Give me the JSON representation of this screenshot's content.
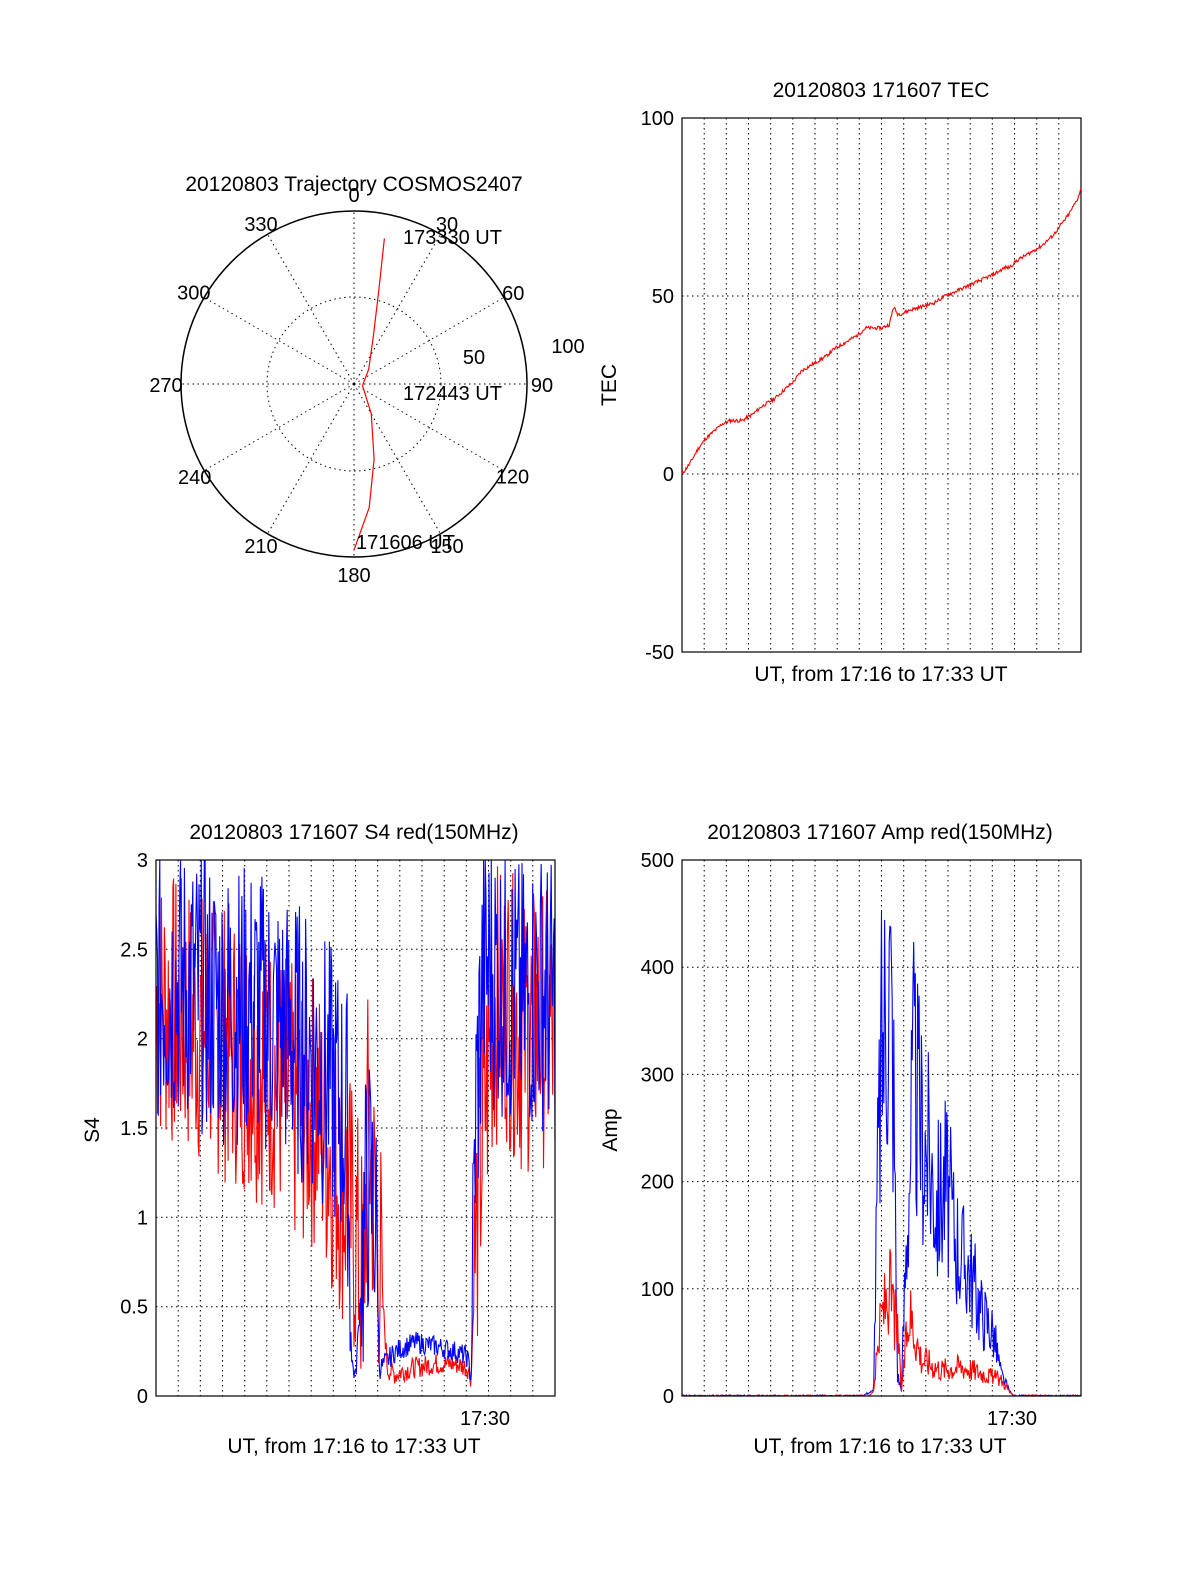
{
  "colors": {
    "red": "#ff0000",
    "blue": "#0000ff"
  },
  "chart_data": [
    {
      "type": "polar",
      "title": "20120803 Trajectory COSMOS2407",
      "azimuth_labels": [
        "0",
        "30",
        "60",
        "90",
        "120",
        "150",
        "180",
        "210",
        "240",
        "270",
        "300",
        "330"
      ],
      "radial_labels": [
        "50",
        "100"
      ],
      "rlim": [
        0,
        100
      ],
      "point_labels": [
        {
          "text": "173330 UT",
          "az": 12,
          "r": 87
        },
        {
          "text": "172443 UT",
          "az": 90,
          "r": 1
        },
        {
          "text": "171606 UT",
          "az": 180,
          "r": 98
        }
      ],
      "trajectory": [
        {
          "az": 11.8,
          "r": 86
        },
        {
          "az": 15,
          "r": 55
        },
        {
          "az": 22,
          "r": 30
        },
        {
          "az": 45,
          "r": 12
        },
        {
          "az": 100,
          "r": 5
        },
        {
          "az": 150,
          "r": 20
        },
        {
          "az": 165,
          "r": 45
        },
        {
          "az": 173,
          "r": 72
        },
        {
          "az": 180,
          "r": 96
        }
      ],
      "grid": true
    },
    {
      "type": "line",
      "title": "20120803 171607 TEC",
      "xlabel": "UT, from 17:16 to 17:33 UT",
      "ylabel": "TEC",
      "ylim": [
        -50,
        100
      ],
      "yticks": [
        "100",
        "50",
        "0",
        "-50"
      ],
      "xlim": [
        0,
        1
      ],
      "grid": true,
      "series": [
        {
          "color": "red",
          "x": [
            0,
            0.02,
            0.04,
            0.06,
            0.08,
            0.1,
            0.12,
            0.15,
            0.18,
            0.2,
            0.23,
            0.26,
            0.28,
            0.3,
            0.33,
            0.36,
            0.38,
            0.41,
            0.44,
            0.46,
            0.48,
            0.5,
            0.52,
            0.53,
            0.54,
            0.55,
            0.57,
            0.6,
            0.63,
            0.66,
            0.7,
            0.74,
            0.78,
            0.81,
            0.82,
            0.84,
            0.87,
            0.9,
            0.93,
            0.95,
            0.97,
            0.99,
            1
          ],
          "y": [
            0,
            3,
            7,
            10,
            12,
            14,
            15,
            15,
            17,
            19,
            21,
            24,
            26,
            29,
            31,
            33,
            35,
            37,
            39,
            41,
            41,
            41,
            42,
            47,
            45,
            45,
            46,
            47,
            48,
            50,
            52,
            54,
            56,
            58,
            58,
            60,
            62,
            64,
            67,
            70,
            73,
            77,
            80
          ]
        }
      ]
    },
    {
      "type": "line",
      "title": "20120803 171607 S4 red(150MHz)",
      "xlabel": "UT, from 17:16 to 17:33 UT",
      "ylabel": "S4",
      "ylim": [
        0,
        3
      ],
      "yticks": [
        "3",
        "2.5",
        "2",
        "1.5",
        "1",
        "0.5",
        "0"
      ],
      "xticks": [
        "17:30"
      ],
      "xlim": [
        0,
        1
      ],
      "grid": true,
      "series": [
        {
          "color": "red",
          "x": [
            0,
            0.08,
            0.16,
            0.24,
            0.3,
            0.35,
            0.4,
            0.45,
            0.48,
            0.5,
            0.52,
            0.53,
            0.55,
            0.56,
            0.58,
            0.6,
            0.62,
            0.65,
            0.7,
            0.75,
            0.78,
            0.79,
            0.8,
            0.82,
            0.84,
            0.85,
            0.88,
            0.92,
            0.96,
            1
          ],
          "y": [
            2.2,
            2.1,
            2.0,
            1.9,
            1.8,
            1.6,
            1.6,
            1.3,
            1.1,
            0.9,
            0.6,
            1.5,
            1.0,
            0.8,
            0.15,
            0.12,
            0.14,
            0.16,
            0.18,
            0.18,
            0.16,
            0.1,
            0.8,
            1.5,
            2.0,
            2.2,
            2.2,
            2.0,
            2.1,
            2.0
          ]
        },
        {
          "color": "blue",
          "x": [
            0,
            0.08,
            0.16,
            0.24,
            0.3,
            0.35,
            0.4,
            0.45,
            0.48,
            0.49,
            0.5,
            0.53,
            0.55,
            0.56,
            0.58,
            0.6,
            0.65,
            0.7,
            0.75,
            0.78,
            0.79,
            0.8,
            0.82,
            0.84,
            0.88,
            0.92,
            0.96,
            1
          ],
          "y": [
            2.3,
            2.3,
            2.2,
            2.2,
            2.1,
            2.0,
            1.9,
            1.7,
            1.5,
            0.2,
            0.1,
            1.2,
            1.0,
            0.15,
            0.2,
            0.25,
            0.3,
            0.28,
            0.25,
            0.22,
            0.1,
            1.5,
            2.4,
            2.4,
            2.3,
            2.2,
            2.3,
            2.2
          ]
        }
      ]
    },
    {
      "type": "line",
      "title": "20120803 171607 Amp red(150MHz)",
      "xlabel": "UT, from 17:16 to 17:33 UT",
      "ylabel": "Amp",
      "ylim": [
        0,
        500
      ],
      "yticks": [
        "500",
        "400",
        "300",
        "200",
        "100",
        "0"
      ],
      "xticks": [
        "17:30"
      ],
      "xlim": [
        0,
        1
      ],
      "grid": true,
      "series": [
        {
          "color": "blue",
          "x": [
            0,
            0.45,
            0.48,
            0.49,
            0.5,
            0.52,
            0.53,
            0.54,
            0.55,
            0.56,
            0.58,
            0.6,
            0.62,
            0.64,
            0.66,
            0.68,
            0.7,
            0.72,
            0.75,
            0.78,
            0.8,
            0.82,
            0.83,
            1
          ],
          "y": [
            0,
            0,
            5,
            200,
            320,
            400,
            300,
            20,
            5,
            120,
            300,
            250,
            220,
            180,
            200,
            160,
            130,
            120,
            80,
            60,
            20,
            5,
            0,
            0
          ]
        },
        {
          "color": "red",
          "x": [
            0,
            0.47,
            0.48,
            0.5,
            0.52,
            0.54,
            0.55,
            0.57,
            0.6,
            0.65,
            0.7,
            0.75,
            0.8,
            0.82,
            0.83,
            1
          ],
          "y": [
            0,
            0,
            5,
            75,
            100,
            60,
            5,
            80,
            35,
            25,
            28,
            22,
            15,
            5,
            0,
            0
          ]
        }
      ]
    }
  ]
}
